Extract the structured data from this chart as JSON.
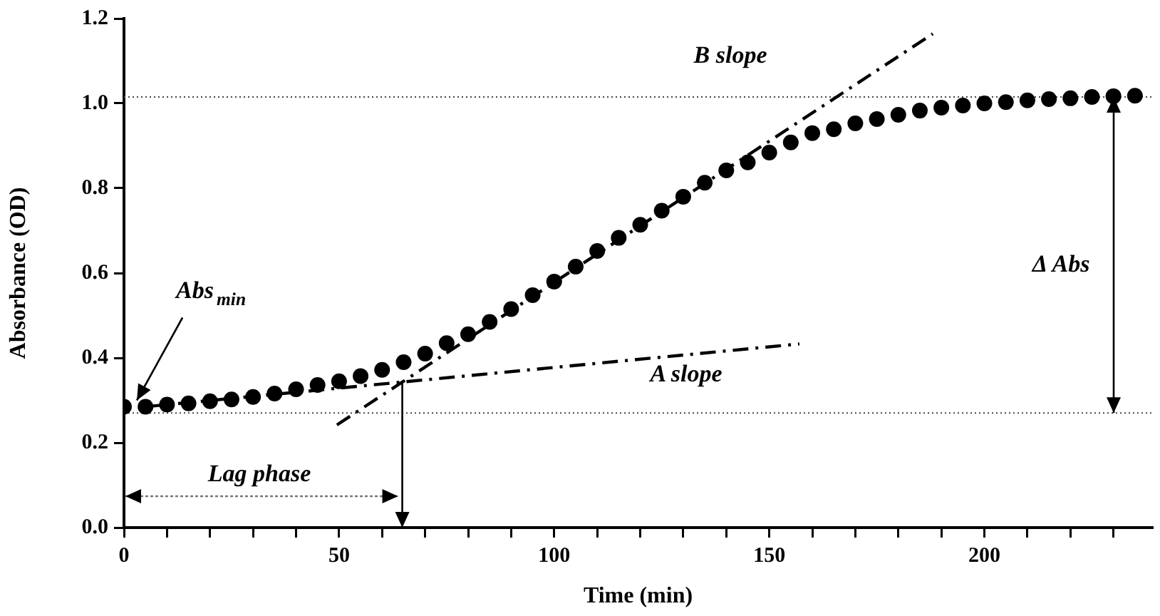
{
  "chart_data": {
    "type": "scatter",
    "xlabel": "Time (min)",
    "ylabel": "Absorbance (OD)",
    "x": [
      0,
      5,
      10,
      15,
      20,
      25,
      30,
      35,
      40,
      45,
      50,
      55,
      60,
      65,
      70,
      75,
      80,
      85,
      90,
      95,
      100,
      105,
      110,
      115,
      120,
      125,
      130,
      135,
      140,
      145,
      150,
      155,
      160,
      165,
      170,
      175,
      180,
      185,
      190,
      195,
      200,
      205,
      210,
      215,
      220,
      225,
      230,
      235
    ],
    "series": [
      {
        "color": "#000000",
        "marker": "circle",
        "values": [
          0.285,
          0.285,
          0.29,
          0.293,
          0.298,
          0.302,
          0.308,
          0.316,
          0.326,
          0.336,
          0.345,
          0.357,
          0.372,
          0.39,
          0.41,
          0.435,
          0.456,
          0.485,
          0.515,
          0.548,
          0.58,
          0.615,
          0.652,
          0.683,
          0.714,
          0.747,
          0.78,
          0.813,
          0.842,
          0.861,
          0.884,
          0.908,
          0.93,
          0.939,
          0.953,
          0.963,
          0.973,
          0.983,
          0.99,
          0.995,
          1.0,
          1.003,
          1.007,
          1.01,
          1.012,
          1.015,
          1.017,
          1.018
        ]
      },
      {
        "type": "line",
        "name": "A slope",
        "color": "#000000",
        "line_style": "dashed",
        "marker": "none",
        "x": [
          5,
          157
        ],
        "values": [
          0.285,
          0.433
        ]
      },
      {
        "type": "line",
        "name": "B slope",
        "color": "#000000",
        "line_style": "dashed",
        "marker": "none",
        "x": [
          49.5,
          188
        ],
        "values": [
          0.242,
          1.164
        ]
      }
    ],
    "xlim": [
      0,
      239
    ],
    "xticks": [
      0,
      {
        "value": 10,
        "label": null
      },
      {
        "value": 20,
        "label": null
      },
      {
        "value": 30,
        "label": null
      },
      {
        "value": 40,
        "label": null
      },
      50,
      {
        "value": 60,
        "label": null
      },
      {
        "value": 70,
        "label": null
      },
      {
        "value": 80,
        "label": null
      },
      {
        "value": 90,
        "label": null
      },
      100,
      {
        "value": 110,
        "label": null
      },
      {
        "value": 120,
        "label": null
      },
      {
        "value": 130,
        "label": null
      },
      {
        "value": 140,
        "label": null
      },
      150,
      {
        "value": 160,
        "label": null
      },
      {
        "value": 170,
        "label": null
      },
      {
        "value": 180,
        "label": null
      },
      {
        "value": 190,
        "label": null
      },
      200,
      {
        "value": 210,
        "label": null
      },
      {
        "value": 220,
        "label": null
      },
      {
        "value": 230,
        "label": null
      }
    ],
    "ylim": [
      0,
      1.2
    ],
    "yticks": [
      {
        "value": 0,
        "label": "0.0"
      },
      0.2,
      0.4,
      0.6,
      0.8,
      {
        "value": 1,
        "label": "1.0"
      },
      1.2
    ],
    "ref_lines": [
      {
        "axis": "y",
        "value": 1.015,
        "color": "#444444",
        "line_style": "dotted"
      },
      {
        "axis": "y",
        "value": 0.27,
        "color": "#444444",
        "line_style": "dotted"
      }
    ],
    "annotations": [
      {
        "text": "Abs$_{min}$",
        "x": 3,
        "y": 0.3
      },
      "Lag phase",
      "Δ Abs"
    ],
    "grid": false,
    "legend": false
  }
}
